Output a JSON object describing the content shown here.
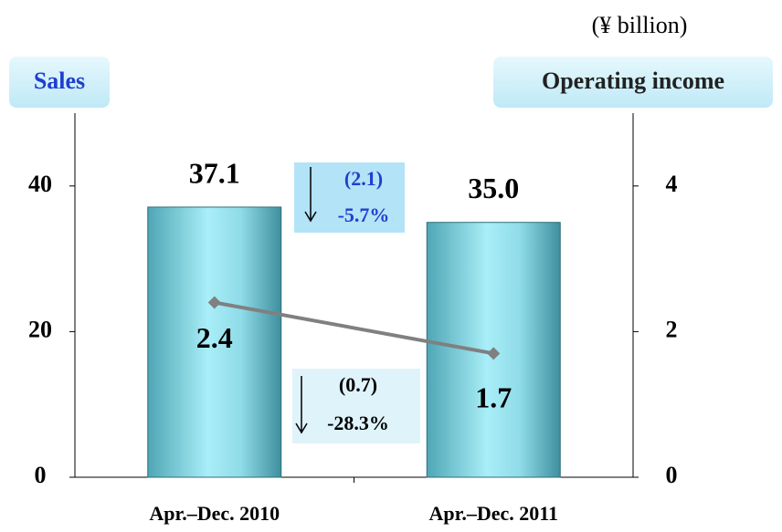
{
  "chart_data": {
    "type": "bar",
    "unit": "(¥ billion)",
    "y_label": "Sales",
    "y2_label": "Operating income",
    "categories": [
      "Apr.–Dec. 2010",
      "Apr.–Dec. 2011"
    ],
    "series": [
      {
        "name": "Sales",
        "type": "bar",
        "color": "#7fd3e0",
        "values": [
          37.1,
          35.0
        ],
        "value_labels": [
          "37.1",
          "35.0"
        ]
      },
      {
        "name": "Operating income",
        "type": "line",
        "axis": "y2",
        "color": "#808080",
        "values": [
          2.4,
          1.7
        ]
      }
    ],
    "ylim": [
      0,
      50
    ],
    "yticks": [
      0,
      20,
      40
    ],
    "y2lim": [
      0,
      5
    ],
    "y2ticks": [
      0,
      2,
      4
    ],
    "annotations": [
      {
        "change": "(2.1)",
        "percent": "-5.7%"
      },
      {
        "change": "(0.7)",
        "percent": "-28.3%"
      }
    ]
  }
}
